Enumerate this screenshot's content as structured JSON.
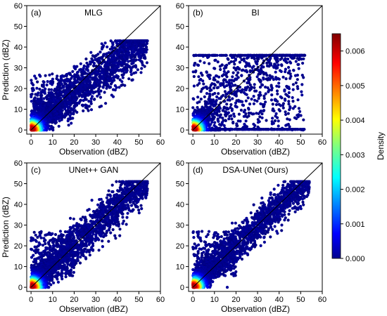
{
  "chart_data": [
    {
      "type": "scatter",
      "panel_label": "(a)",
      "title": "MLG",
      "xlabel": "",
      "ylabel": "Prediction (dBZ)",
      "xlim": [
        -2,
        60
      ],
      "ylim": [
        -2,
        60
      ],
      "xticks": [
        0,
        10,
        20,
        30,
        40,
        50,
        60
      ],
      "yticks": [
        0,
        10,
        20,
        30,
        40,
        50,
        60
      ],
      "pattern": "mlg",
      "identity_line": true
    },
    {
      "type": "scatter",
      "panel_label": "(b)",
      "title": "BI",
      "xlabel": "",
      "ylabel": "",
      "xlim": [
        -2,
        60
      ],
      "ylim": [
        -2,
        60
      ],
      "xticks": [
        0,
        10,
        20,
        30,
        40,
        50,
        60
      ],
      "yticks": [
        0,
        10,
        20,
        30,
        40,
        50,
        60
      ],
      "pattern": "bi",
      "identity_line": true
    },
    {
      "type": "scatter",
      "panel_label": "(c)",
      "title": "UNet++ GAN",
      "xlabel": "Observation (dBZ)",
      "ylabel": "Prediction (dBZ)",
      "xlim": [
        -2,
        60
      ],
      "ylim": [
        -2,
        60
      ],
      "xticks": [
        0,
        10,
        20,
        30,
        40,
        50,
        60
      ],
      "yticks": [
        0,
        10,
        20,
        30,
        40,
        50,
        60
      ],
      "pattern": "unet",
      "identity_line": true
    },
    {
      "type": "scatter",
      "panel_label": "(d)",
      "title": "DSA-UNet (Ours)",
      "xlabel": "Observation (dBZ)",
      "ylabel": "",
      "xlim": [
        -2,
        60
      ],
      "ylim": [
        -2,
        60
      ],
      "xticks": [
        0,
        10,
        20,
        30,
        40,
        50,
        60
      ],
      "yticks": [
        0,
        10,
        20,
        30,
        40,
        50,
        60
      ],
      "pattern": "dsa",
      "identity_line": true
    }
  ],
  "shared_xlabel_top": "Observation (dBZ)",
  "colorbar": {
    "label": "Density",
    "min": 0.0,
    "max": 0.0065,
    "ticks": [
      "0.000",
      "0.001",
      "0.002",
      "0.003",
      "0.004",
      "0.005",
      "0.006"
    ],
    "tick_values": [
      0.0,
      0.001,
      0.002,
      0.003,
      0.004,
      0.005,
      0.006
    ],
    "colormap": "jet"
  },
  "colors": {
    "point_low": "#00008f",
    "point_high": "#800000",
    "identity_line": "#000000"
  }
}
